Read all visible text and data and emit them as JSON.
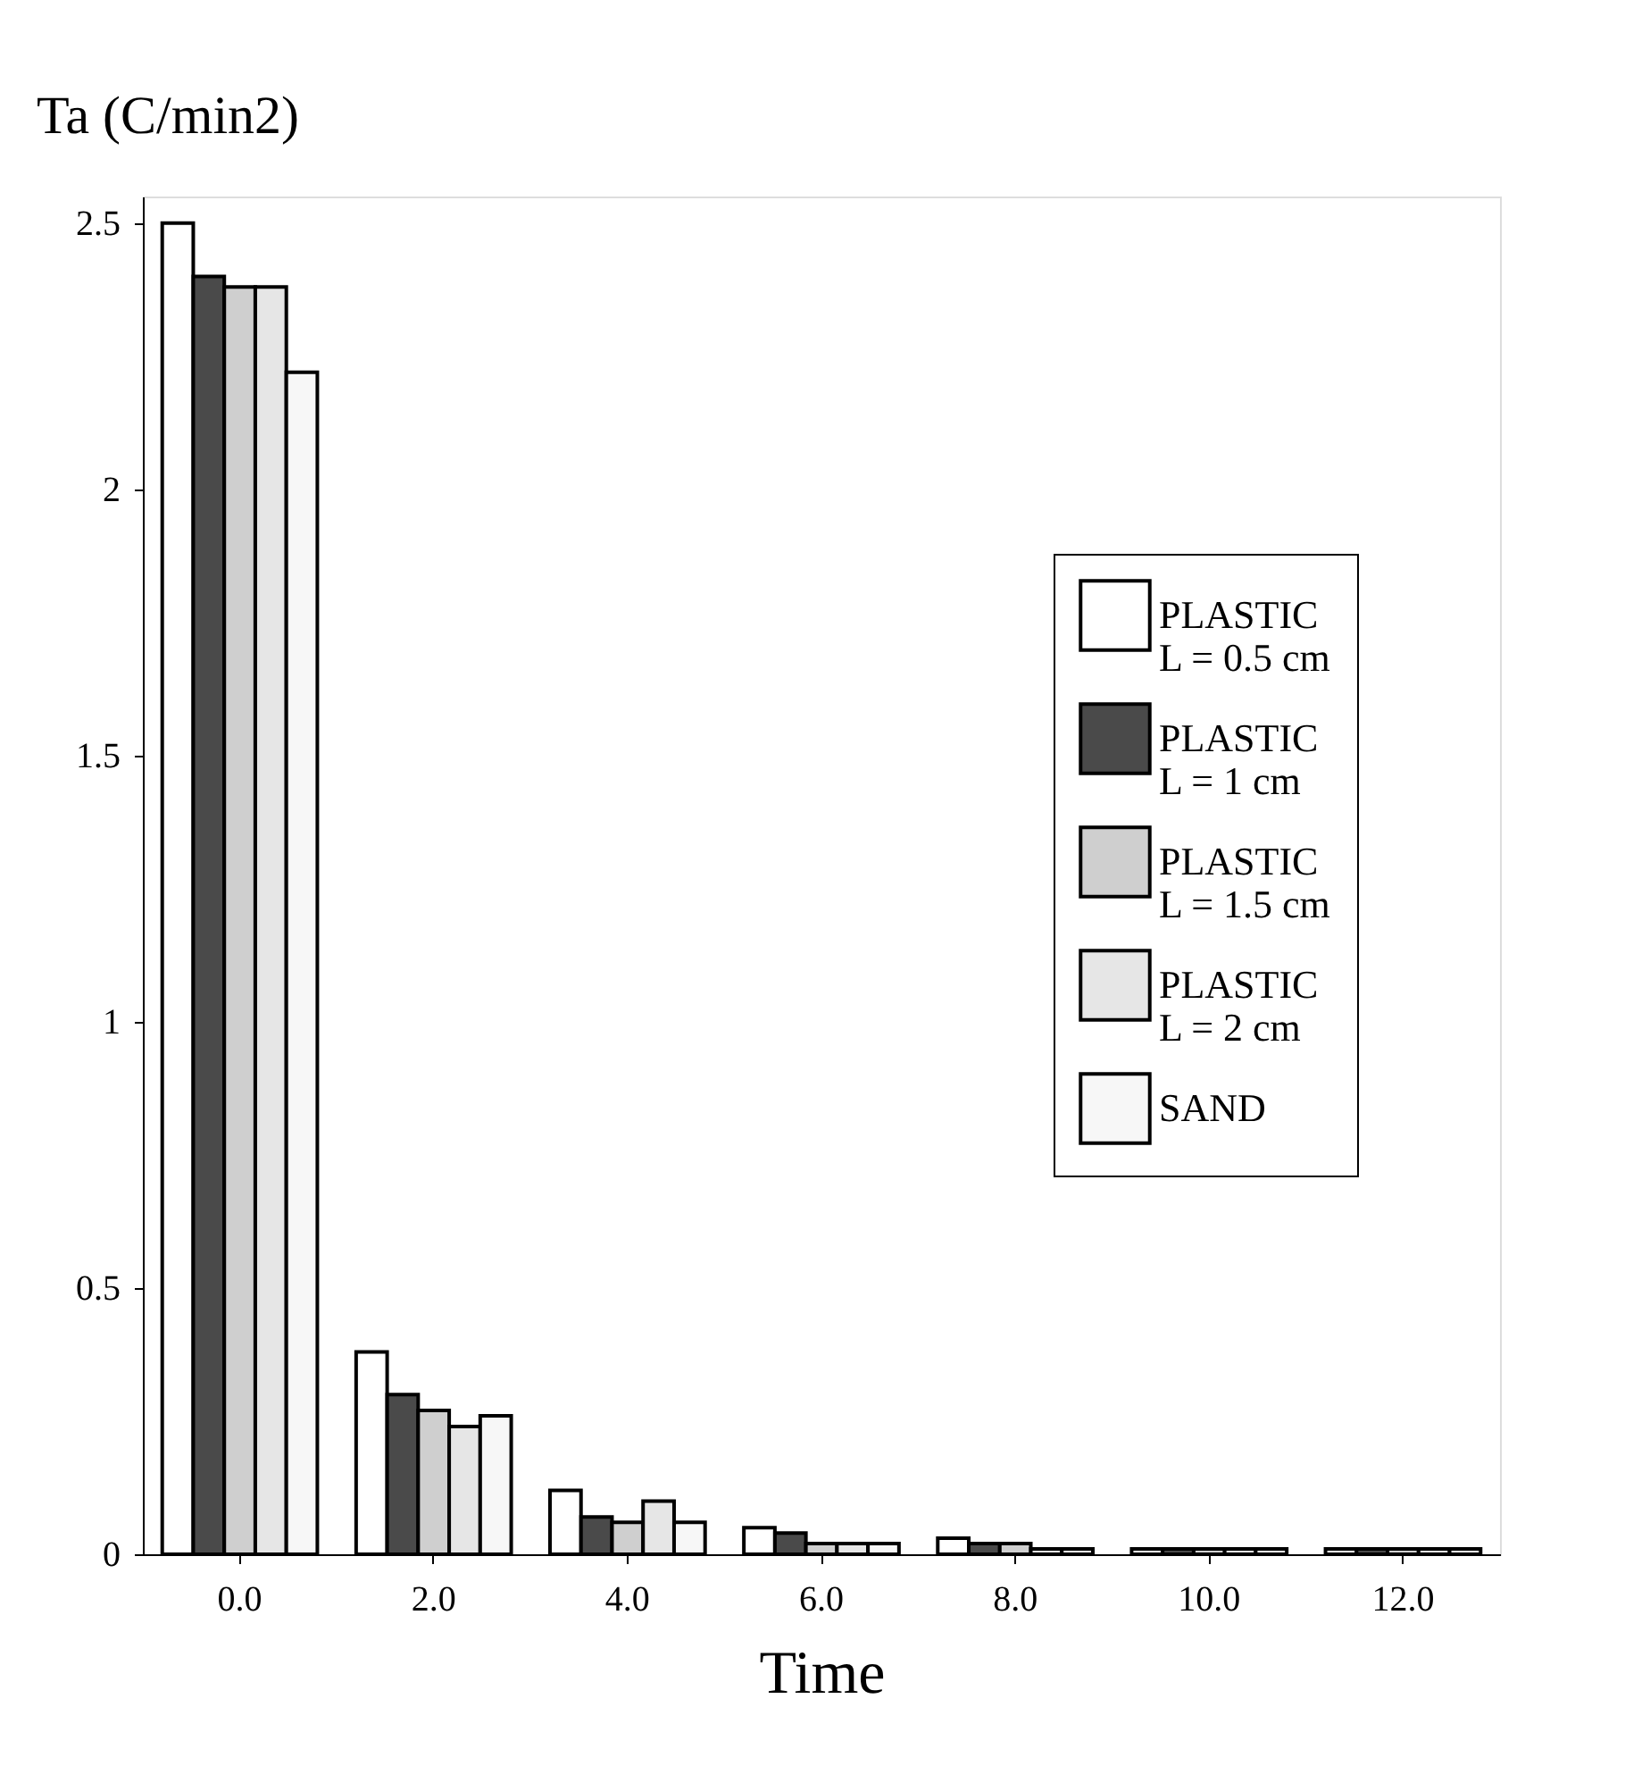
{
  "chart_data": {
    "type": "bar",
    "ylabel": "Ta (C/min2)",
    "xlabel": "Time",
    "categories": [
      "0.0",
      "2.0",
      "4.0",
      "6.0",
      "8.0",
      "10.0",
      "12.0"
    ],
    "series": [
      {
        "name": "PLASTIC\nL = 0.5 cm",
        "color": "#ffffff",
        "values": [
          2.5,
          0.38,
          0.12,
          0.05,
          0.03,
          0.01,
          0.01
        ]
      },
      {
        "name": "PLASTIC\nL = 1 cm",
        "color": "#4a4a4a",
        "values": [
          2.4,
          0.3,
          0.07,
          0.04,
          0.02,
          0.01,
          0.01
        ]
      },
      {
        "name": "PLASTIC\nL = 1.5 cm",
        "color": "#cfcfcf",
        "values": [
          2.38,
          0.27,
          0.06,
          0.02,
          0.02,
          0.01,
          0.01
        ]
      },
      {
        "name": "PLASTIC\nL = 2 cm",
        "color": "#e6e6e6",
        "values": [
          2.38,
          0.24,
          0.1,
          0.02,
          0.01,
          0.01,
          0.01
        ]
      },
      {
        "name": "SAND",
        "color": "#f7f7f7",
        "values": [
          2.22,
          0.26,
          0.06,
          0.02,
          0.01,
          0.01,
          0.01
        ]
      }
    ],
    "ylim": [
      0,
      2.55
    ],
    "yticks": [
      0,
      0.5,
      1,
      1.5,
      2,
      2.5
    ],
    "grid": false,
    "legend": "right"
  }
}
